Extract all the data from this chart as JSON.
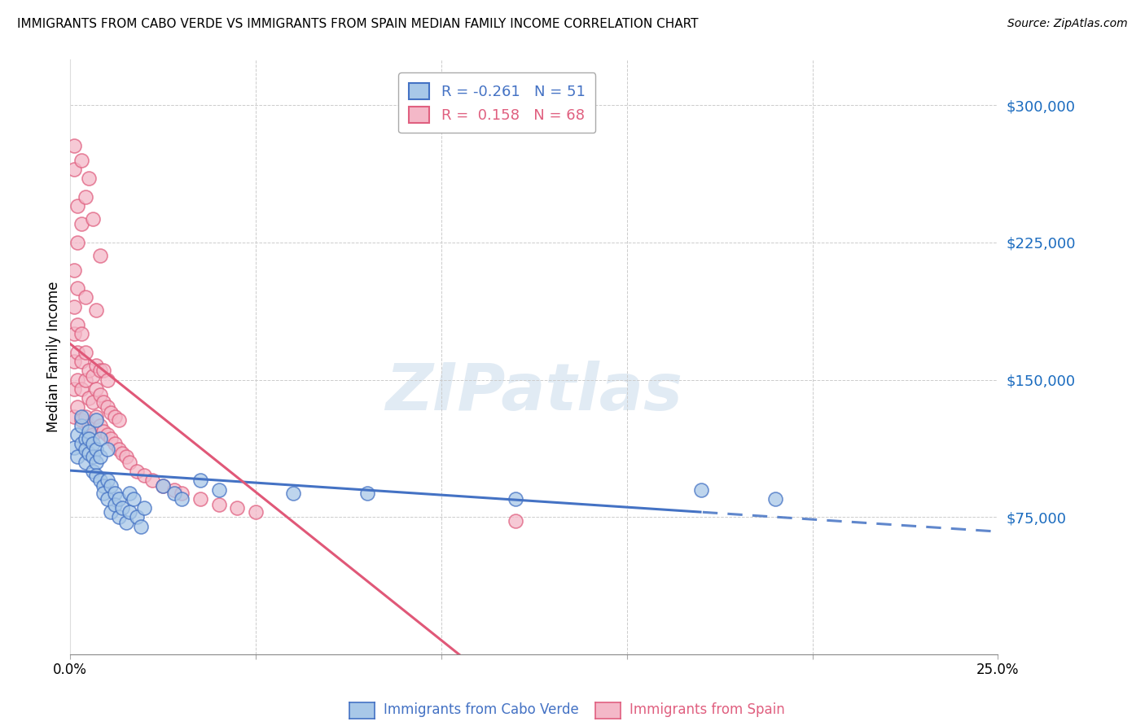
{
  "title": "IMMIGRANTS FROM CABO VERDE VS IMMIGRANTS FROM SPAIN MEDIAN FAMILY INCOME CORRELATION CHART",
  "source": "Source: ZipAtlas.com",
  "ylabel": "Median Family Income",
  "yticks": [
    0,
    75000,
    150000,
    225000,
    300000
  ],
  "ytick_labels": [
    "",
    "$75,000",
    "$150,000",
    "$225,000",
    "$300,000"
  ],
  "xlim": [
    0.0,
    0.25
  ],
  "ylim": [
    0,
    325000
  ],
  "watermark": "ZIPatlas",
  "cabo_verde_R": -0.261,
  "cabo_verde_N": 51,
  "spain_R": 0.158,
  "spain_N": 68,
  "cabo_verde_face_color": "#a8c8e8",
  "cabo_verde_edge_color": "#4472c4",
  "spain_face_color": "#f4b8c8",
  "spain_edge_color": "#e06080",
  "cabo_verde_line_color": "#4472c4",
  "spain_line_color": "#e05878",
  "cabo_verde_points": [
    [
      0.001,
      113000
    ],
    [
      0.002,
      108000
    ],
    [
      0.002,
      120000
    ],
    [
      0.003,
      125000
    ],
    [
      0.003,
      115000
    ],
    [
      0.003,
      130000
    ],
    [
      0.004,
      118000
    ],
    [
      0.004,
      112000
    ],
    [
      0.004,
      105000
    ],
    [
      0.005,
      122000
    ],
    [
      0.005,
      110000
    ],
    [
      0.005,
      118000
    ],
    [
      0.006,
      115000
    ],
    [
      0.006,
      108000
    ],
    [
      0.006,
      100000
    ],
    [
      0.007,
      112000
    ],
    [
      0.007,
      105000
    ],
    [
      0.007,
      98000
    ],
    [
      0.007,
      128000
    ],
    [
      0.008,
      118000
    ],
    [
      0.008,
      95000
    ],
    [
      0.008,
      108000
    ],
    [
      0.009,
      92000
    ],
    [
      0.009,
      88000
    ],
    [
      0.01,
      95000
    ],
    [
      0.01,
      85000
    ],
    [
      0.01,
      112000
    ],
    [
      0.011,
      78000
    ],
    [
      0.011,
      92000
    ],
    [
      0.012,
      88000
    ],
    [
      0.012,
      82000
    ],
    [
      0.013,
      75000
    ],
    [
      0.013,
      85000
    ],
    [
      0.014,
      80000
    ],
    [
      0.015,
      72000
    ],
    [
      0.016,
      88000
    ],
    [
      0.016,
      78000
    ],
    [
      0.017,
      85000
    ],
    [
      0.018,
      75000
    ],
    [
      0.019,
      70000
    ],
    [
      0.02,
      80000
    ],
    [
      0.025,
      92000
    ],
    [
      0.028,
      88000
    ],
    [
      0.03,
      85000
    ],
    [
      0.035,
      95000
    ],
    [
      0.04,
      90000
    ],
    [
      0.06,
      88000
    ],
    [
      0.08,
      88000
    ],
    [
      0.12,
      85000
    ],
    [
      0.17,
      90000
    ],
    [
      0.19,
      85000
    ]
  ],
  "spain_points": [
    [
      0.001,
      145000
    ],
    [
      0.001,
      130000
    ],
    [
      0.001,
      160000
    ],
    [
      0.001,
      175000
    ],
    [
      0.001,
      190000
    ],
    [
      0.001,
      210000
    ],
    [
      0.001,
      265000
    ],
    [
      0.001,
      278000
    ],
    [
      0.002,
      135000
    ],
    [
      0.002,
      150000
    ],
    [
      0.002,
      165000
    ],
    [
      0.002,
      180000
    ],
    [
      0.002,
      200000
    ],
    [
      0.002,
      225000
    ],
    [
      0.002,
      245000
    ],
    [
      0.003,
      128000
    ],
    [
      0.003,
      145000
    ],
    [
      0.003,
      160000
    ],
    [
      0.003,
      175000
    ],
    [
      0.003,
      235000
    ],
    [
      0.003,
      270000
    ],
    [
      0.004,
      130000
    ],
    [
      0.004,
      150000
    ],
    [
      0.004,
      165000
    ],
    [
      0.004,
      195000
    ],
    [
      0.004,
      250000
    ],
    [
      0.005,
      125000
    ],
    [
      0.005,
      140000
    ],
    [
      0.005,
      155000
    ],
    [
      0.005,
      260000
    ],
    [
      0.006,
      120000
    ],
    [
      0.006,
      138000
    ],
    [
      0.006,
      152000
    ],
    [
      0.006,
      238000
    ],
    [
      0.007,
      130000
    ],
    [
      0.007,
      145000
    ],
    [
      0.007,
      158000
    ],
    [
      0.007,
      188000
    ],
    [
      0.008,
      125000
    ],
    [
      0.008,
      142000
    ],
    [
      0.008,
      155000
    ],
    [
      0.008,
      218000
    ],
    [
      0.009,
      122000
    ],
    [
      0.009,
      138000
    ],
    [
      0.009,
      155000
    ],
    [
      0.01,
      120000
    ],
    [
      0.01,
      135000
    ],
    [
      0.01,
      150000
    ],
    [
      0.011,
      118000
    ],
    [
      0.011,
      132000
    ],
    [
      0.012,
      115000
    ],
    [
      0.012,
      130000
    ],
    [
      0.013,
      112000
    ],
    [
      0.013,
      128000
    ],
    [
      0.014,
      110000
    ],
    [
      0.015,
      108000
    ],
    [
      0.016,
      105000
    ],
    [
      0.018,
      100000
    ],
    [
      0.02,
      98000
    ],
    [
      0.022,
      95000
    ],
    [
      0.025,
      92000
    ],
    [
      0.028,
      90000
    ],
    [
      0.03,
      88000
    ],
    [
      0.035,
      85000
    ],
    [
      0.04,
      82000
    ],
    [
      0.045,
      80000
    ],
    [
      0.05,
      78000
    ],
    [
      0.12,
      73000
    ]
  ]
}
